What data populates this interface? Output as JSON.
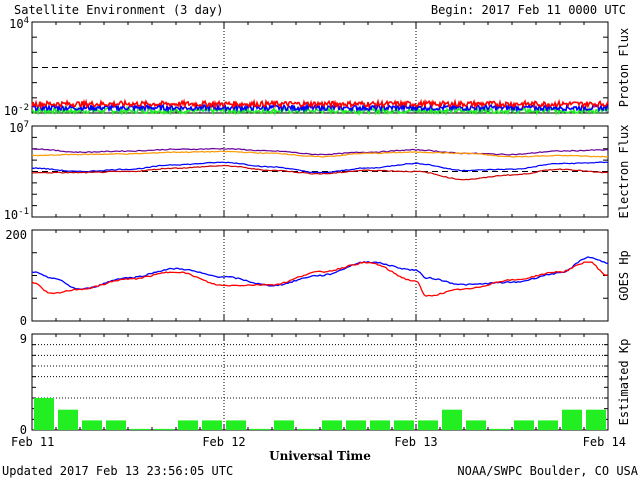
{
  "header": {
    "title": "Satellite Environment (3 day)",
    "begin": "Begin:  2017 Feb 11 0000 UTC"
  },
  "footer": {
    "updated": "Updated 2017 Feb 13 23:56:05 UTC",
    "credit": "NOAA/SWPC Boulder, CO USA"
  },
  "colors": {
    "red": "#ff0000",
    "blue": "#0000ff",
    "green": "#22ee22",
    "orange": "#ff9900",
    "purple": "#660099",
    "darkred": "#cc0000"
  },
  "chart_data": [
    {
      "name_id": "proton",
      "type": "line",
      "ylabel": "Proton Flux",
      "yscale": "log",
      "ylim_exp": [
        -2,
        4
      ],
      "tick_labels": [
        {
          "mantissa": "10",
          "exp": "4"
        },
        {
          "mantissa": "10",
          "exp": "-2"
        }
      ],
      "threshold_exp": 1,
      "series": [
        {
          "color": "red",
          "level_exp": -1.4
        },
        {
          "color": "blue",
          "level_exp": -1.65
        },
        {
          "color": "green",
          "level_exp": -1.85
        }
      ]
    },
    {
      "name_id": "electron",
      "type": "line",
      "ylabel": "Electron Flux",
      "yscale": "log",
      "ylim_exp": [
        -1,
        7
      ],
      "tick_labels": [
        {
          "mantissa": "10",
          "exp": "7"
        },
        {
          "mantissa": "10",
          "exp": "-1"
        }
      ],
      "threshold_exp": 3,
      "x": [
        0,
        0.25,
        0.5,
        0.75,
        1,
        1.25,
        1.5,
        1.75,
        2,
        2.25,
        2.5,
        2.75,
        3
      ],
      "series": [
        {
          "color": "purple",
          "values_exp": [
            5.0,
            4.7,
            4.8,
            4.95,
            5.0,
            4.8,
            4.5,
            4.7,
            4.9,
            4.6,
            4.5,
            4.8,
            4.9
          ]
        },
        {
          "color": "orange",
          "values_exp": [
            4.4,
            4.5,
            4.55,
            4.7,
            4.75,
            4.6,
            4.3,
            4.6,
            4.7,
            4.6,
            4.3,
            4.4,
            4.3
          ]
        },
        {
          "color": "blue",
          "values_exp": [
            3.3,
            3.0,
            3.2,
            3.6,
            3.8,
            3.4,
            2.9,
            3.3,
            3.7,
            3.1,
            3.2,
            3.7,
            3.8
          ]
        },
        {
          "color": "darkred",
          "values_exp": [
            2.9,
            2.9,
            3.0,
            3.3,
            3.5,
            3.1,
            2.8,
            3.1,
            3.0,
            2.3,
            2.7,
            3.2,
            2.9
          ]
        }
      ]
    },
    {
      "name_id": "hp",
      "type": "line",
      "ylabel": "GOES Hp",
      "ylim": [
        0,
        200
      ],
      "tick_labels": [
        "200",
        "0"
      ],
      "x": [
        0,
        0.1,
        0.25,
        0.5,
        0.75,
        1,
        1.25,
        1.5,
        1.75,
        2,
        2.05,
        2.25,
        2.5,
        2.75,
        2.9,
        3
      ],
      "series": [
        {
          "color": "blue",
          "values": [
            108,
            95,
            70,
            95,
            115,
            97,
            78,
            100,
            130,
            112,
            95,
            80,
            85,
            105,
            140,
            128
          ]
        },
        {
          "color": "red",
          "values": [
            85,
            60,
            70,
            92,
            108,
            78,
            80,
            108,
            128,
            88,
            55,
            70,
            90,
            108,
            130,
            100
          ]
        }
      ]
    },
    {
      "name_id": "kp",
      "type": "bar",
      "ylabel": "Estimated Kp",
      "ylim": [
        0,
        9
      ],
      "tick_labels": [
        "9",
        "0"
      ],
      "grid_levels": [
        3,
        5,
        6,
        7,
        8
      ],
      "bar_color": "green",
      "values": [
        3.0,
        1.9,
        0.9,
        0.9,
        0.1,
        0.1,
        0.9,
        0.9,
        0.9,
        0.1,
        0.9,
        0.1,
        0.9,
        0.9,
        0.9,
        0.9,
        0.9,
        1.9,
        0.9,
        0.1,
        0.9,
        0.9,
        1.9,
        1.9
      ]
    }
  ],
  "xaxis": {
    "labels": [
      "Feb 11",
      "Feb 12",
      "Feb 13",
      "Feb 14"
    ],
    "title": "Universal Time",
    "days": 3
  }
}
